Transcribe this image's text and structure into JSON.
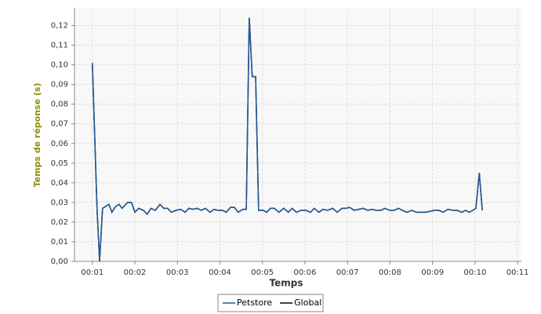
{
  "chart_data": {
    "type": "line",
    "y_label": "Temps de réponse (s)",
    "x_label": "Temps",
    "x": [
      1.0,
      1.11,
      1.17,
      1.24,
      1.39,
      1.46,
      1.55,
      1.63,
      1.7,
      1.83,
      1.92,
      2.0,
      2.09,
      2.2,
      2.29,
      2.38,
      2.48,
      2.59,
      2.68,
      2.77,
      2.86,
      2.97,
      3.08,
      3.18,
      3.27,
      3.36,
      3.47,
      3.56,
      3.66,
      3.77,
      3.86,
      3.95,
      4.06,
      4.15,
      4.25,
      4.34,
      4.43,
      4.54,
      4.62,
      4.69,
      4.76,
      4.84,
      4.91,
      5.02,
      5.1,
      5.19,
      5.28,
      5.39,
      5.5,
      5.61,
      5.7,
      5.8,
      5.91,
      6.02,
      6.13,
      6.22,
      6.33,
      6.42,
      6.53,
      6.65,
      6.76,
      6.87,
      6.96,
      7.05,
      7.16,
      7.27,
      7.37,
      7.48,
      7.57,
      7.68,
      7.79,
      7.88,
      7.99,
      8.1,
      8.2,
      8.29,
      8.4,
      8.51,
      8.62,
      8.73,
      8.84,
      8.95,
      9.04,
      9.15,
      9.25,
      9.36,
      9.47,
      9.58,
      9.69,
      9.78,
      9.86,
      9.95,
      10.02,
      10.1,
      10.17
    ],
    "series": [
      {
        "name": "Petstore",
        "color": "#1f5a9a",
        "values": [
          0.101,
          0.027,
          0.0,
          0.027,
          0.029,
          0.025,
          0.028,
          0.029,
          0.027,
          0.03,
          0.03,
          0.025,
          0.027,
          0.026,
          0.024,
          0.027,
          0.026,
          0.029,
          0.027,
          0.027,
          0.025,
          0.026,
          0.0265,
          0.025,
          0.027,
          0.0265,
          0.027,
          0.026,
          0.027,
          0.025,
          0.0265,
          0.026,
          0.026,
          0.025,
          0.0275,
          0.0275,
          0.025,
          0.0265,
          0.0265,
          0.124,
          0.094,
          0.094,
          0.026,
          0.026,
          0.025,
          0.027,
          0.027,
          0.025,
          0.027,
          0.025,
          0.027,
          0.025,
          0.026,
          0.026,
          0.025,
          0.027,
          0.025,
          0.0265,
          0.026,
          0.027,
          0.025,
          0.027,
          0.027,
          0.0275,
          0.026,
          0.0265,
          0.027,
          0.026,
          0.0265,
          0.026,
          0.026,
          0.027,
          0.026,
          0.026,
          0.027,
          0.026,
          0.025,
          0.026,
          0.025,
          0.025,
          0.025,
          0.0255,
          0.026,
          0.026,
          0.025,
          0.0265,
          0.026,
          0.026,
          0.025,
          0.026,
          0.025,
          0.026,
          0.027,
          0.045,
          0.026
        ]
      },
      {
        "name": "Global",
        "color": "#000000",
        "values": [
          0.101,
          0.027,
          0.0,
          0.027,
          0.029,
          0.025,
          0.028,
          0.029,
          0.027,
          0.03,
          0.03,
          0.025,
          0.027,
          0.026,
          0.024,
          0.027,
          0.026,
          0.029,
          0.027,
          0.027,
          0.025,
          0.026,
          0.0265,
          0.025,
          0.027,
          0.0265,
          0.027,
          0.026,
          0.027,
          0.025,
          0.0265,
          0.026,
          0.026,
          0.025,
          0.0275,
          0.0275,
          0.025,
          0.0265,
          0.0265,
          0.124,
          0.094,
          0.094,
          0.026,
          0.026,
          0.025,
          0.027,
          0.027,
          0.025,
          0.027,
          0.025,
          0.027,
          0.025,
          0.026,
          0.026,
          0.025,
          0.027,
          0.025,
          0.0265,
          0.026,
          0.027,
          0.025,
          0.027,
          0.027,
          0.0275,
          0.026,
          0.0265,
          0.027,
          0.026,
          0.0265,
          0.026,
          0.026,
          0.027,
          0.026,
          0.026,
          0.027,
          0.026,
          0.025,
          0.026,
          0.025,
          0.025,
          0.025,
          0.0255,
          0.026,
          0.026,
          0.025,
          0.0265,
          0.026,
          0.026,
          0.025,
          0.026,
          0.025,
          0.026,
          0.027,
          0.045,
          0.026
        ]
      }
    ],
    "xlim": [
      0.58,
      11.09
    ],
    "xticks": [
      {
        "value": 1,
        "label": "00:01"
      },
      {
        "value": 2,
        "label": "00:02"
      },
      {
        "value": 3,
        "label": "00:03"
      },
      {
        "value": 4,
        "label": "00:04"
      },
      {
        "value": 5,
        "label": "00:05"
      },
      {
        "value": 6,
        "label": "00:06"
      },
      {
        "value": 7,
        "label": "00:07"
      },
      {
        "value": 8,
        "label": "00:08"
      },
      {
        "value": 9,
        "label": "00:09"
      },
      {
        "value": 10,
        "label": "00:10"
      },
      {
        "value": 11,
        "label": "00:11"
      }
    ],
    "ylim": [
      0,
      0.129
    ],
    "yticks": [
      {
        "value": 0,
        "label": "0,00"
      },
      {
        "value": 0.01,
        "label": "0,01"
      },
      {
        "value": 0.02,
        "label": "0,02"
      },
      {
        "value": 0.03,
        "label": "0,03"
      },
      {
        "value": 0.04,
        "label": "0,04"
      },
      {
        "value": 0.05,
        "label": "0,05"
      },
      {
        "value": 0.06,
        "label": "0,06"
      },
      {
        "value": 0.07,
        "label": "0,07"
      },
      {
        "value": 0.08,
        "label": "0,08"
      },
      {
        "value": 0.09,
        "label": "0,09"
      },
      {
        "value": 0.1,
        "label": "0,10"
      },
      {
        "value": 0.11,
        "label": "0,11"
      },
      {
        "value": 0.12,
        "label": "0,12"
      }
    ],
    "grid": true
  }
}
